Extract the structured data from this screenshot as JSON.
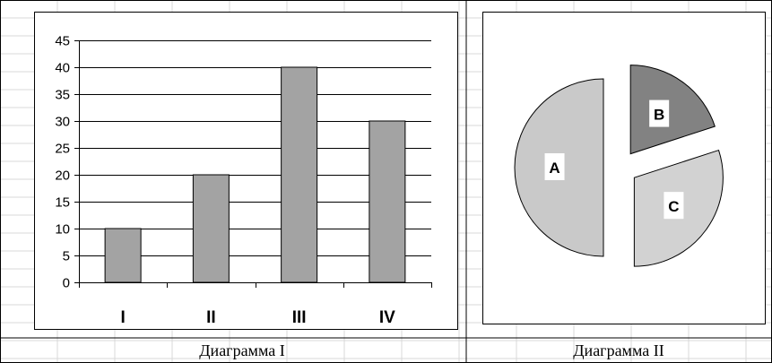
{
  "captions": {
    "left": "Диаграмма I",
    "right": "Диаграмма II"
  },
  "colors": {
    "bar": "#a3a3a3",
    "slice_A": "#c9c9c9",
    "slice_B": "#828282",
    "slice_C": "#d2d2d2",
    "grid": "#000000",
    "sheet_grid": "#d8d8d8"
  },
  "chart_data": [
    {
      "type": "bar",
      "categories": [
        "I",
        "II",
        "III",
        "IV"
      ],
      "values": [
        10,
        20,
        40,
        30
      ],
      "ylim": [
        0,
        45
      ],
      "yticks": [
        "0",
        "5",
        "10",
        "15",
        "20",
        "25",
        "30",
        "35",
        "40",
        "45"
      ],
      "grid": true,
      "legend": "none"
    },
    {
      "type": "pie",
      "labels": [
        "A",
        "B",
        "C"
      ],
      "values": [
        50,
        20,
        30
      ],
      "exploded": true,
      "legend": "none"
    }
  ]
}
